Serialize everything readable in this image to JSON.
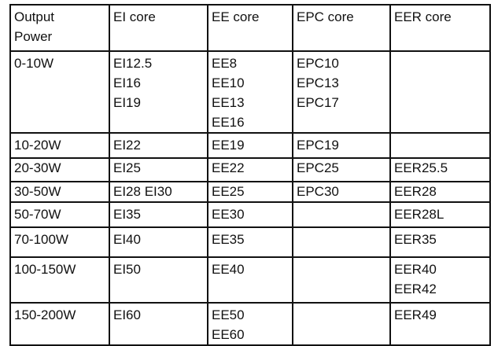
{
  "table": {
    "header": [
      [
        "Output",
        "Power"
      ],
      [
        "EI core"
      ],
      [
        "EE core"
      ],
      [
        "EPC core"
      ],
      [
        "EER core"
      ]
    ],
    "rows": [
      [
        [
          "0-10W"
        ],
        [
          "EI12.5",
          "EI16",
          "EI19"
        ],
        [
          "EE8",
          "EE10",
          "EE13",
          "EE16"
        ],
        [
          "EPC10",
          "EPC13",
          "EPC17"
        ],
        []
      ],
      [
        [
          "10-20W"
        ],
        [
          "EI22"
        ],
        [
          "EE19"
        ],
        [
          "EPC19"
        ],
        []
      ],
      [
        [
          "20-30W"
        ],
        [
          "EI25"
        ],
        [
          "EE22"
        ],
        [
          "EPC25"
        ],
        [
          "EER25.5"
        ]
      ],
      [
        [
          "30-50W"
        ],
        [
          "EI28 EI30"
        ],
        [
          "EE25"
        ],
        [
          "EPC30"
        ],
        [
          "EER28"
        ]
      ],
      [
        [
          "50-70W"
        ],
        [
          "EI35"
        ],
        [
          "EE30"
        ],
        [],
        [
          "EER28L"
        ]
      ],
      [
        [
          "70-100W"
        ],
        [
          "EI40"
        ],
        [
          "EE35"
        ],
        [],
        [
          "EER35"
        ]
      ],
      [
        [
          "100-150W"
        ],
        [
          "EI50"
        ],
        [
          "EE40"
        ],
        [],
        [
          "EER40",
          "EER42"
        ]
      ],
      [
        [
          "150-200W"
        ],
        [
          "EI60"
        ],
        [
          "EE50",
          "EE60"
        ],
        [],
        [
          "EER49"
        ]
      ]
    ]
  }
}
